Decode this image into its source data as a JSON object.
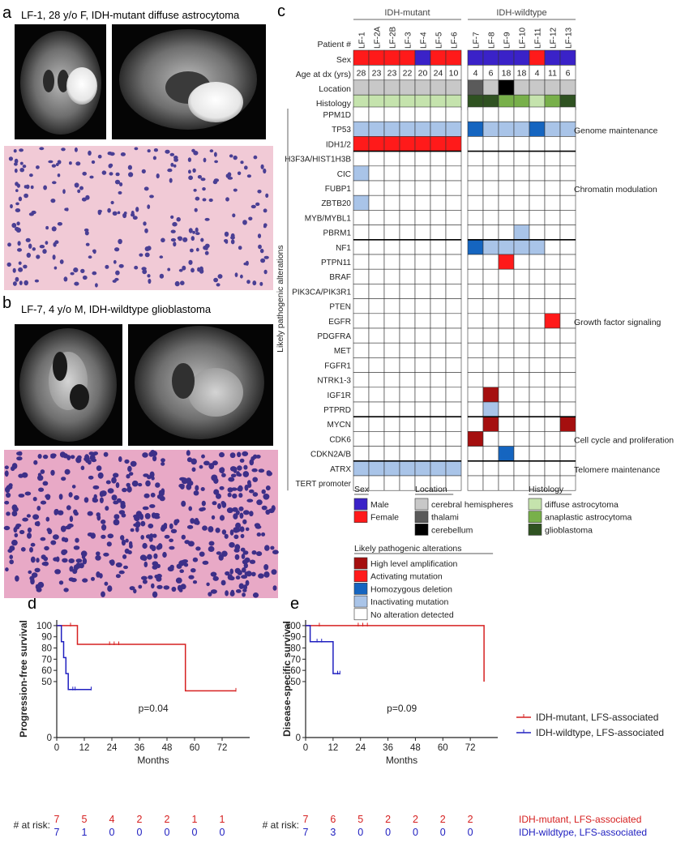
{
  "panels": {
    "a": {
      "letter": "a",
      "title": "LF-1, 28 y/o F, IDH-mutant diffuse astrocytoma"
    },
    "b": {
      "letter": "b",
      "title": "LF-7, 4 y/o M, IDH-wildtype glioblastoma"
    },
    "c": {
      "letter": "c"
    },
    "d": {
      "letter": "d"
    },
    "e": {
      "letter": "e"
    }
  },
  "heatmap": {
    "groups": [
      "IDH-mutant",
      "IDH-wildtype"
    ],
    "row_labels": {
      "patient": "Patient #",
      "sex": "Sex",
      "age": "Age at dx (yrs)",
      "location": "Location",
      "histology": "Histology"
    },
    "patients_mut": [
      "LF-1",
      "LF-2A",
      "LF-2B",
      "LF-3",
      "LF-4",
      "LF-5",
      "LF-6"
    ],
    "patients_wt": [
      "LF-7",
      "LF-8",
      "LF-9",
      "LF-10",
      "LF-11",
      "LF-12",
      "LF-13"
    ],
    "sex_mut": [
      "F",
      "F",
      "F",
      "F",
      "M",
      "F",
      "F"
    ],
    "sex_wt": [
      "M",
      "M",
      "M",
      "M",
      "F",
      "M",
      "M"
    ],
    "age_mut": [
      "28",
      "23",
      "23",
      "22",
      "20",
      "24",
      "10"
    ],
    "age_wt": [
      "4",
      "6",
      "18",
      "18",
      "4",
      "11",
      "6"
    ],
    "location_mut": [
      "cer",
      "cer",
      "cer",
      "cer",
      "cer",
      "cer",
      "cer"
    ],
    "location_wt": [
      "tha",
      "cer",
      "cbl",
      "cer",
      "cer",
      "cer",
      "cer"
    ],
    "histology_mut": [
      "diffuse",
      "diffuse",
      "diffuse",
      "diffuse",
      "diffuse",
      "diffuse",
      "diffuse"
    ],
    "histology_wt": [
      "gbm",
      "gbm",
      "anaplastic",
      "anaplastic",
      "diffuse",
      "anaplastic",
      "gbm"
    ],
    "y_axis_label": "Likely pathogenic alterations",
    "genes": [
      "PPM1D",
      "TP53",
      "IDH1/2",
      "H3F3A/HIST1H3B",
      "CIC",
      "FUBP1",
      "ZBTB20",
      "MYB/MYBL1",
      "PBRM1",
      "NF1",
      "PTPN11",
      "BRAF",
      "PIK3CA/PIK3R1",
      "PTEN",
      "EGFR",
      "PDGFRA",
      "MET",
      "FGFR1",
      "NTRK1-3",
      "IGF1R",
      "PTPRD",
      "MYCN",
      "CDK6",
      "CDKN2A/B",
      "ATRX",
      "TERT promoter"
    ],
    "alterations_mut": [
      [
        "",
        "",
        "",
        "",
        "",
        "",
        ""
      ],
      [
        "I",
        "I",
        "I",
        "I",
        "I",
        "I",
        "I"
      ],
      [
        "A",
        "A",
        "A",
        "A",
        "A",
        "A",
        "A"
      ],
      [
        "",
        "",
        "",
        "",
        "",
        "",
        ""
      ],
      [
        "I",
        "",
        "",
        "",
        "",
        "",
        ""
      ],
      [
        "",
        "",
        "",
        "",
        "",
        "",
        ""
      ],
      [
        "I",
        "",
        "",
        "",
        "",
        "",
        ""
      ],
      [
        "",
        "",
        "",
        "",
        "",
        "",
        ""
      ],
      [
        "",
        "",
        "",
        "",
        "",
        "",
        ""
      ],
      [
        "",
        "",
        "",
        "",
        "",
        "",
        ""
      ],
      [
        "",
        "",
        "",
        "",
        "",
        "",
        ""
      ],
      [
        "",
        "",
        "",
        "",
        "",
        "",
        ""
      ],
      [
        "",
        "",
        "",
        "",
        "",
        "",
        ""
      ],
      [
        "",
        "",
        "",
        "",
        "",
        "",
        ""
      ],
      [
        "",
        "",
        "",
        "",
        "",
        "",
        ""
      ],
      [
        "",
        "",
        "",
        "",
        "",
        "",
        ""
      ],
      [
        "",
        "",
        "",
        "",
        "",
        "",
        ""
      ],
      [
        "",
        "",
        "",
        "",
        "",
        "",
        ""
      ],
      [
        "",
        "",
        "",
        "",
        "",
        "",
        ""
      ],
      [
        "",
        "",
        "",
        "",
        "",
        "",
        ""
      ],
      [
        "",
        "",
        "",
        "",
        "",
        "",
        ""
      ],
      [
        "",
        "",
        "",
        "",
        "",
        "",
        ""
      ],
      [
        "",
        "",
        "",
        "",
        "",
        "",
        ""
      ],
      [
        "",
        "",
        "",
        "",
        "",
        "",
        ""
      ],
      [
        "I",
        "I",
        "I",
        "I",
        "I",
        "I",
        "I"
      ],
      [
        "",
        "",
        "",
        "",
        "",
        "",
        ""
      ]
    ],
    "alterations_wt": [
      [
        "",
        "",
        "",
        "",
        "",
        "",
        ""
      ],
      [
        "H",
        "I",
        "I",
        "I",
        "H",
        "I",
        "I"
      ],
      [
        "",
        "",
        "",
        "",
        "",
        "",
        ""
      ],
      [
        "",
        "",
        "",
        "",
        "",
        "",
        ""
      ],
      [
        "",
        "",
        "",
        "",
        "",
        "",
        ""
      ],
      [
        "",
        "",
        "",
        "",
        "",
        "",
        ""
      ],
      [
        "",
        "",
        "",
        "",
        "",
        "",
        ""
      ],
      [
        "",
        "",
        "",
        "",
        "",
        "",
        ""
      ],
      [
        "",
        "",
        "",
        "I",
        "",
        "",
        ""
      ],
      [
        "H",
        "I",
        "I",
        "I",
        "I",
        "",
        ""
      ],
      [
        "",
        "",
        "A",
        "",
        "",
        "",
        ""
      ],
      [
        "",
        "",
        "",
        "",
        "",
        "",
        ""
      ],
      [
        "",
        "",
        "",
        "",
        "",
        "",
        ""
      ],
      [
        "",
        "",
        "",
        "",
        "",
        "",
        ""
      ],
      [
        "",
        "",
        "",
        "",
        "",
        "A",
        ""
      ],
      [
        "",
        "",
        "",
        "",
        "",
        "",
        ""
      ],
      [
        "",
        "",
        "",
        "",
        "",
        "",
        ""
      ],
      [
        "",
        "",
        "",
        "",
        "",
        "",
        ""
      ],
      [
        "",
        "",
        "",
        "",
        "",
        "",
        ""
      ],
      [
        "",
        "X",
        "",
        "",
        "",
        "",
        ""
      ],
      [
        "",
        "I",
        "",
        "",
        "",
        "",
        ""
      ],
      [
        "",
        "X",
        "",
        "",
        "",
        "",
        "X"
      ],
      [
        "X",
        "",
        "",
        "",
        "",
        "",
        ""
      ],
      [
        "",
        "",
        "H",
        "",
        "",
        "",
        ""
      ],
      [
        "",
        "",
        "",
        "",
        "",
        "",
        ""
      ],
      [
        "",
        "",
        "",
        "",
        "",
        "",
        ""
      ]
    ],
    "categories": [
      {
        "label": "Genome maintenance"
      },
      {
        "label": "Chromatin modulation"
      },
      {
        "label": "Growth factor signaling"
      },
      {
        "label": "Cell cycle and proliferation"
      },
      {
        "label": "Telomere maintenance"
      }
    ]
  },
  "legend": {
    "sex_title": "Sex",
    "sex": [
      {
        "label": "Male",
        "color": "#3a22c8"
      },
      {
        "label": "Female",
        "color": "#ff1a1a"
      }
    ],
    "location_title": "Location",
    "location": [
      {
        "label": "cerebral hemispheres",
        "color": "#c8c8c8"
      },
      {
        "label": "thalami",
        "color": "#5a5a5a"
      },
      {
        "label": "cerebellum",
        "color": "#000000"
      }
    ],
    "histology_title": "Histology",
    "histology": [
      {
        "label": "diffuse astrocytoma",
        "color": "#c5e3ad"
      },
      {
        "label": "anaplastic astrocytoma",
        "color": "#78b04a"
      },
      {
        "label": "glioblastoma",
        "color": "#2f5221"
      }
    ],
    "alt_title": "Likely pathogenic alterations",
    "alt": [
      {
        "label": "High level amplification",
        "color": "#a50f0f"
      },
      {
        "label": "Activating mutation",
        "color": "#ff1a1a"
      },
      {
        "label": "Homozygous deletion",
        "color": "#1565c0"
      },
      {
        "label": "Inactivating mutation",
        "color": "#a9c4e8"
      },
      {
        "label": "No alteration detected",
        "color": "#ffffff"
      }
    ]
  },
  "colors": {
    "mutant": "#d62020",
    "wildtype": "#2020c0",
    "I": "#a9c4e8",
    "A": "#ff1a1a",
    "H": "#1565c0",
    "X": "#a50f0f"
  },
  "chart_data": [
    {
      "type": "line",
      "title": "",
      "xlabel": "Months",
      "ylabel": "Progression-free survival",
      "xlim": [
        0,
        84
      ],
      "ylim": [
        0,
        105
      ],
      "xticks": [
        0,
        12,
        24,
        36,
        48,
        60,
        72
      ],
      "yticks": [
        50,
        60,
        70,
        80,
        90,
        100
      ],
      "series": [
        {
          "name": "IDH-mutant, LFS-associated",
          "x": [
            0,
            9,
            9,
            56,
            56,
            78
          ],
          "y": [
            100,
            100,
            83.3,
            83.3,
            41.7,
            41.7
          ],
          "censored": [
            [
              6,
              100
            ],
            [
              23,
              83.3
            ],
            [
              25,
              83.3
            ],
            [
              27,
              83.3
            ],
            [
              78,
              41.7
            ]
          ]
        },
        {
          "name": "IDH-wildtype, LFS-associated",
          "x": [
            0,
            2,
            2,
            3,
            3,
            4,
            4,
            5,
            5,
            6,
            6,
            15
          ],
          "y": [
            100,
            100,
            85.7,
            85.7,
            71.4,
            71.4,
            57.1,
            57.1,
            42.9,
            42.9,
            42.9,
            42.9
          ],
          "censored": [
            [
              7,
              42.9
            ],
            [
              8,
              42.9
            ],
            [
              15,
              42.9
            ]
          ]
        }
      ],
      "annotation": "p=0.04",
      "risk_label": "# at risk:",
      "risk_times": [
        0,
        12,
        24,
        36,
        48,
        60,
        72
      ],
      "risk": [
        [
          "7",
          "5",
          "4",
          "2",
          "2",
          "1",
          "1"
        ],
        [
          "7",
          "1",
          "0",
          "0",
          "0",
          "0",
          "0"
        ]
      ]
    },
    {
      "type": "line",
      "title": "",
      "xlabel": "Months",
      "ylabel": "Disease-specific survival",
      "xlim": [
        0,
        84
      ],
      "ylim": [
        0,
        105
      ],
      "xticks": [
        0,
        12,
        24,
        36,
        48,
        60,
        72
      ],
      "yticks": [
        50,
        60,
        70,
        80,
        90,
        100
      ],
      "series": [
        {
          "name": "IDH-mutant, LFS-associated",
          "x": [
            0,
            78,
            78
          ],
          "y": [
            100,
            100,
            50
          ],
          "censored": [
            [
              6,
              100
            ],
            [
              23,
              100
            ],
            [
              25,
              100
            ],
            [
              27,
              100
            ]
          ]
        },
        {
          "name": "IDH-wildtype, LFS-associated",
          "x": [
            0,
            2,
            2,
            12,
            12,
            15
          ],
          "y": [
            100,
            100,
            85.7,
            85.7,
            57.1,
            57.1
          ],
          "censored": [
            [
              5,
              85.7
            ],
            [
              7,
              85.7
            ],
            [
              14,
              57.1
            ],
            [
              15,
              57.1
            ]
          ]
        }
      ],
      "annotation": "p=0.09",
      "risk_label": "# at risk:",
      "risk_times": [
        0,
        12,
        24,
        36,
        48,
        60,
        72
      ],
      "risk": [
        [
          "7",
          "6",
          "5",
          "2",
          "2",
          "2",
          "2"
        ],
        [
          "7",
          "3",
          "0",
          "0",
          "0",
          "0",
          "0"
        ]
      ]
    }
  ],
  "km_legend": [
    "IDH-mutant, LFS-associated",
    "IDH-wildtype, LFS-associated"
  ],
  "risk_row_labels": [
    "IDH-mutant, LFS-associated",
    "IDH-wildtype, LFS-associated"
  ]
}
